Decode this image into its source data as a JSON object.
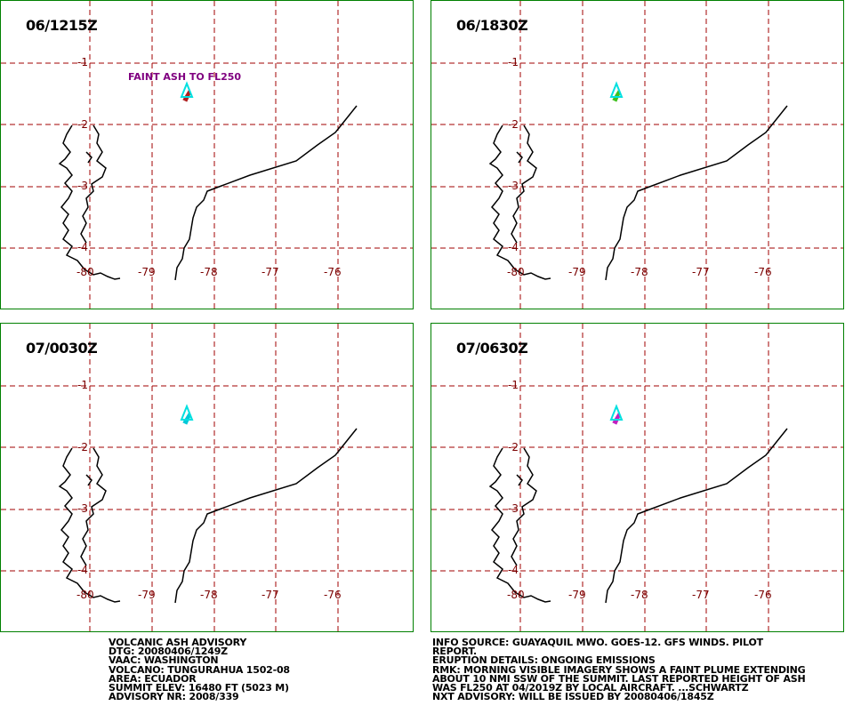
{
  "panels": [
    {
      "id": "p1",
      "title": "06/1215Z",
      "annotation": "FAINT ASH TO FL250",
      "plume_color": "#b02020"
    },
    {
      "id": "p2",
      "title": "06/1830Z",
      "annotation": "",
      "plume_color": "#40c020"
    },
    {
      "id": "p3",
      "title": "07/0030Z",
      "annotation": "",
      "plume_color": "#00c8d8"
    },
    {
      "id": "p4",
      "title": "07/0630Z",
      "annotation": "",
      "plume_color": "#c020c0"
    }
  ],
  "lat_labels": [
    "-1",
    "-2",
    "-3",
    "-4"
  ],
  "lon_labels": [
    "-80",
    "-79",
    "-78",
    "-77",
    "-76"
  ],
  "colors": {
    "panel_border": "#008000",
    "grid": "#a00000",
    "coast": "#000000",
    "volcano": "#00e0e0",
    "annotation": "#800080"
  },
  "advisory_left": [
    "VOLCANIC ASH ADVISORY",
    "DTG: 20080406/1249Z",
    "VAAC: WASHINGTON",
    "VOLCANO: TUNGURAHUA 1502-08",
    "AREA: ECUADOR",
    "SUMMIT ELEV: 16480 FT (5023 M)",
    "ADVISORY NR: 2008/339"
  ],
  "advisory_right": [
    "INFO SOURCE: GUAYAQUIL MWO. GOES-12. GFS WINDS. PILOT",
    "REPORT.",
    "ERUPTION DETAILS: ONGOING EMISSIONS",
    "RMK: MORNING VISIBLE IMAGERY SHOWS A FAINT PLUME EXTENDING",
    "ABOUT 10 NMI SSW OF THE SUMMIT. LAST REPORTED HEIGHT OF ASH",
    "WAS FL250 AT 04/2019Z BY LOCAL AIRCRAFT. ...SCHWARTZ",
    "NXT ADVISORY: WILL BE ISSUED BY 20080406/1845Z"
  ]
}
